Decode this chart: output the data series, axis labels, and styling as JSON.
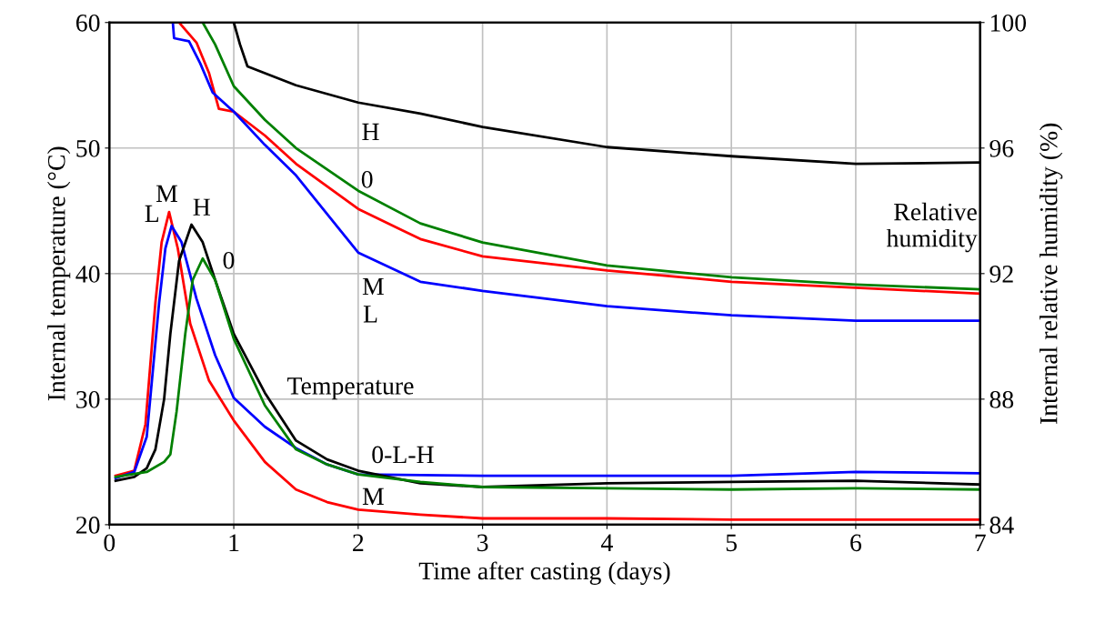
{
  "chart_data": {
    "type": "line",
    "xlabel": "Time after casting (days)",
    "ylabel": "Internal temperature (°C)",
    "y2label": "Internal relative humidity (%)",
    "xlim": [
      0,
      7
    ],
    "xticks": [
      0,
      1,
      2,
      3,
      4,
      5,
      6,
      7
    ],
    "ylim": [
      20,
      60
    ],
    "yticks": [
      20,
      30,
      40,
      50,
      60
    ],
    "y2lim": [
      84,
      100
    ],
    "y2ticks": [
      84,
      88,
      92,
      96,
      100
    ],
    "grid": true,
    "line_style": "solid",
    "series": [
      {
        "color": "#ff0000",
        "axis": "y",
        "x": [
          0.05,
          0.2,
          0.29,
          0.37,
          0.42,
          0.48,
          0.55,
          0.65,
          0.8,
          1,
          1.25,
          1.5,
          1.75,
          2,
          2.5,
          3,
          4,
          5,
          6,
          7
        ],
        "values": [
          23.9,
          24.3,
          28,
          37.7,
          42.5,
          44.9,
          42,
          36,
          31.5,
          28.3,
          25,
          22.8,
          21.8,
          21.2,
          20.8,
          20.5,
          20.5,
          20.4,
          20.4,
          20.4
        ]
      },
      {
        "color": "#0000ff",
        "axis": "y",
        "x": [
          0.05,
          0.2,
          0.3,
          0.4,
          0.45,
          0.5,
          0.58,
          0.7,
          0.85,
          1,
          1.25,
          1.5,
          1.75,
          2,
          3,
          4,
          5,
          6,
          7
        ],
        "values": [
          23.7,
          24.2,
          27,
          37.7,
          42,
          43.8,
          42.5,
          38,
          33.5,
          30.1,
          27.8,
          26.1,
          24.8,
          24.0,
          23.9,
          23.9,
          23.9,
          24.2,
          24.1
        ]
      },
      {
        "color": "#000000",
        "axis": "y",
        "x": [
          0.05,
          0.2,
          0.3,
          0.37,
          0.44,
          0.49,
          0.56,
          0.66,
          0.75,
          0.85,
          1,
          1.25,
          1.5,
          1.75,
          2,
          2.5,
          3,
          4,
          5,
          6,
          7
        ],
        "values": [
          23.5,
          23.8,
          24.5,
          26,
          30,
          35.2,
          41,
          43.9,
          42.5,
          39.5,
          35.2,
          30.5,
          26.7,
          25.2,
          24.3,
          23.3,
          23.0,
          23.3,
          23.4,
          23.5,
          23.2
        ]
      },
      {
        "color": "#008000",
        "axis": "y",
        "x": [
          0.05,
          0.3,
          0.44,
          0.49,
          0.54,
          0.61,
          0.67,
          0.75,
          0.85,
          1,
          1.25,
          1.5,
          1.75,
          2,
          2.5,
          3,
          4,
          5,
          6,
          7
        ],
        "values": [
          23.8,
          24.2,
          25,
          25.6,
          29,
          35.2,
          39.5,
          41.2,
          39.5,
          34.8,
          29.5,
          26.0,
          24.8,
          24.0,
          23.4,
          23.0,
          22.9,
          22.8,
          22.9,
          22.8
        ]
      },
      {
        "color": "#000000",
        "axis": "y2",
        "x": [
          1.0,
          1.05,
          1.11,
          1.5,
          2,
          2.5,
          3,
          4,
          5,
          6,
          7
        ],
        "values": [
          100,
          99.3,
          98.6,
          98.0,
          97.45,
          97.1,
          96.67,
          96.03,
          95.74,
          95.5,
          95.54
        ]
      },
      {
        "color": "#008000",
        "axis": "y2",
        "x": [
          0.75,
          0.85,
          1,
          1.25,
          1.5,
          2,
          2.5,
          3,
          4,
          5,
          6,
          7
        ],
        "values": [
          100,
          99.3,
          97.97,
          96.9,
          96.0,
          94.64,
          93.6,
          92.99,
          92.26,
          91.88,
          91.65,
          91.5
        ]
      },
      {
        "color": "#ff0000",
        "axis": "y2",
        "x": [
          0.56,
          0.7,
          0.8,
          0.88,
          1,
          1.25,
          1.5,
          2,
          2.5,
          3,
          4,
          5,
          6,
          7
        ],
        "values": [
          100,
          99.36,
          98.4,
          97.25,
          97.16,
          96.4,
          95.5,
          94.06,
          93.1,
          92.55,
          92.1,
          91.74,
          91.55,
          91.36
        ]
      },
      {
        "color": "#0000ff",
        "axis": "y2",
        "x": [
          0.51,
          0.52,
          0.64,
          0.73,
          0.83,
          1,
          1.25,
          1.5,
          2,
          2.5,
          3,
          4,
          5,
          6,
          7
        ],
        "values": [
          100,
          99.5,
          99.4,
          98.7,
          97.77,
          97.16,
          96.1,
          95.13,
          92.67,
          91.74,
          91.45,
          90.96,
          90.67,
          90.5,
          90.5
        ]
      }
    ],
    "annotations": [
      "M",
      "L",
      "H",
      "0",
      "H",
      "0",
      "M",
      "L",
      "Temperature",
      "0-L-H",
      "M",
      "Relative\nhumidity"
    ]
  }
}
